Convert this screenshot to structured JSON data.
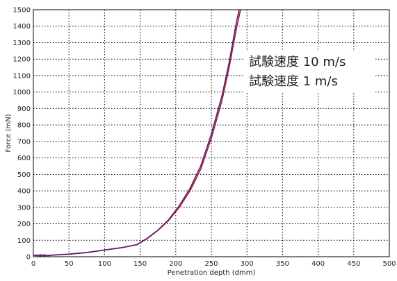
{
  "chart_data": {
    "type": "line",
    "title": "",
    "xlabel": "Penetration depth (dmm)",
    "ylabel": "Force (mN)",
    "xlim": [
      0,
      500
    ],
    "ylim": [
      0,
      1500
    ],
    "xticks": [
      0,
      50,
      100,
      150,
      200,
      250,
      300,
      350,
      400,
      450,
      500
    ],
    "yticks": [
      0,
      100,
      200,
      300,
      400,
      500,
      600,
      700,
      800,
      900,
      1000,
      1100,
      1200,
      1300,
      1400,
      1500
    ],
    "grid": true,
    "legend_position": "top-right",
    "series": [
      {
        "name": "試験速度 10 m/s",
        "color": "#a0203a",
        "x": [
          0,
          5,
          10,
          15,
          20,
          30,
          50,
          75,
          100,
          125,
          145,
          160,
          175,
          190,
          205,
          220,
          235,
          250,
          265,
          275,
          285,
          292
        ],
        "y": [
          10,
          6,
          12,
          5,
          8,
          10,
          15,
          25,
          40,
          55,
          72,
          110,
          160,
          220,
          300,
          400,
          530,
          720,
          950,
          1150,
          1380,
          1520
        ]
      },
      {
        "name": "試験速度 1 m/s",
        "color": "#5c1f6e",
        "x": [
          0,
          5,
          10,
          15,
          20,
          30,
          50,
          75,
          100,
          125,
          145,
          160,
          175,
          190,
          205,
          220,
          235,
          250,
          265,
          275,
          285,
          290
        ],
        "y": [
          8,
          10,
          4,
          12,
          6,
          11,
          16,
          26,
          41,
          56,
          73,
          112,
          162,
          225,
          310,
          415,
          550,
          745,
          980,
          1180,
          1420,
          1520
        ]
      }
    ]
  }
}
